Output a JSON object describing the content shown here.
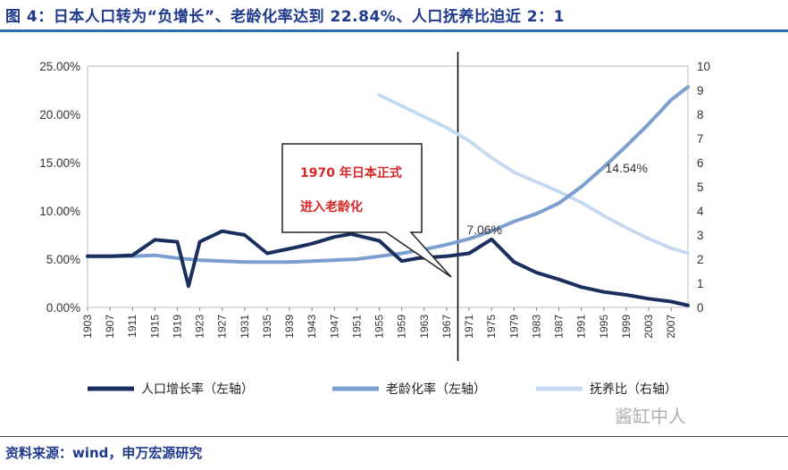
{
  "header": {
    "title": "图 4：日本人口转为“负增长”、老龄化率达到 22.84%、人口抚养比迫近 2：1"
  },
  "footer": {
    "source": "资料来源：wind，申万宏源研究",
    "watermark": "酱缸中人"
  },
  "chart_data": {
    "type": "line",
    "left_axis": {
      "min": 0,
      "max": 25,
      "step": 5,
      "tick_labels": [
        "0.00%",
        "5.00%",
        "10.00%",
        "15.00%",
        "20.00%",
        "25.00%"
      ]
    },
    "right_axis": {
      "min": 0,
      "max": 10,
      "step": 1,
      "tick_labels": [
        "0",
        "1",
        "2",
        "3",
        "4",
        "5",
        "6",
        "7",
        "8",
        "9",
        "10"
      ]
    },
    "x_range": [
      1903,
      2010
    ],
    "x_tick_labels": [
      "1903",
      "1907",
      "1911",
      "1915",
      "1919",
      "1923",
      "1927",
      "1931",
      "1935",
      "1939",
      "1943",
      "1947",
      "1951",
      "1955",
      "1959",
      "1963",
      "1967",
      "1971",
      "1975",
      "1979",
      "1983",
      "1987",
      "1991",
      "1995",
      "1999",
      "2003",
      "2007"
    ],
    "vline_year": 1969,
    "callout": {
      "line1": "1970 年日本正式",
      "line2": "进入老龄化"
    },
    "annotations": [
      {
        "text": "7.06%",
        "x": 1975,
        "y": 7.06
      },
      {
        "text": "14.54%",
        "x": 1994,
        "y": 14.54
      }
    ],
    "legend_placement": "bottom",
    "colors": {
      "growth": "#1b2f5e",
      "aging": "#7b9fcf",
      "dependency": "#c5daf0",
      "callout_text": "#d62728"
    },
    "series": [
      {
        "name": "人口增长率（左轴）",
        "axis": "left",
        "x": [
          1903,
          1907,
          1911,
          1915,
          1919,
          1921,
          1923,
          1927,
          1931,
          1935,
          1940,
          1943,
          1947,
          1950,
          1955,
          1959,
          1962,
          1967,
          1971,
          1975,
          1979,
          1983,
          1987,
          1991,
          1995,
          1999,
          2003,
          2007,
          2010
        ],
        "y": [
          5.3,
          5.3,
          5.4,
          7.0,
          6.8,
          2.2,
          6.8,
          7.9,
          7.5,
          5.6,
          6.2,
          6.6,
          7.3,
          7.6,
          6.9,
          4.8,
          5.1,
          5.3,
          5.6,
          7.06,
          4.7,
          3.6,
          2.9,
          2.1,
          1.6,
          1.3,
          0.9,
          0.6,
          0.2
        ]
      },
      {
        "name": "老龄化率（左轴）",
        "axis": "left",
        "x": [
          1903,
          1907,
          1911,
          1915,
          1919,
          1923,
          1927,
          1931,
          1935,
          1939,
          1943,
          1947,
          1951,
          1955,
          1959,
          1963,
          1967,
          1971,
          1975,
          1979,
          1983,
          1987,
          1991,
          1995,
          1999,
          2003,
          2007,
          2010
        ],
        "y": [
          5.3,
          5.3,
          5.3,
          5.4,
          5.1,
          4.9,
          4.8,
          4.7,
          4.7,
          4.7,
          4.8,
          4.9,
          5.0,
          5.3,
          5.6,
          6.0,
          6.5,
          7.1,
          7.9,
          8.9,
          9.7,
          10.8,
          12.5,
          14.54,
          16.7,
          19.0,
          21.5,
          22.84
        ]
      },
      {
        "name": "抚养比（右轴）",
        "axis": "right",
        "x": [
          1955,
          1959,
          1963,
          1967,
          1971,
          1975,
          1979,
          1983,
          1987,
          1991,
          1995,
          1999,
          2003,
          2007,
          2010
        ],
        "y": [
          8.8,
          8.35,
          7.9,
          7.45,
          6.9,
          6.2,
          5.6,
          5.2,
          4.8,
          4.35,
          3.8,
          3.3,
          2.85,
          2.45,
          2.25
        ]
      }
    ]
  }
}
